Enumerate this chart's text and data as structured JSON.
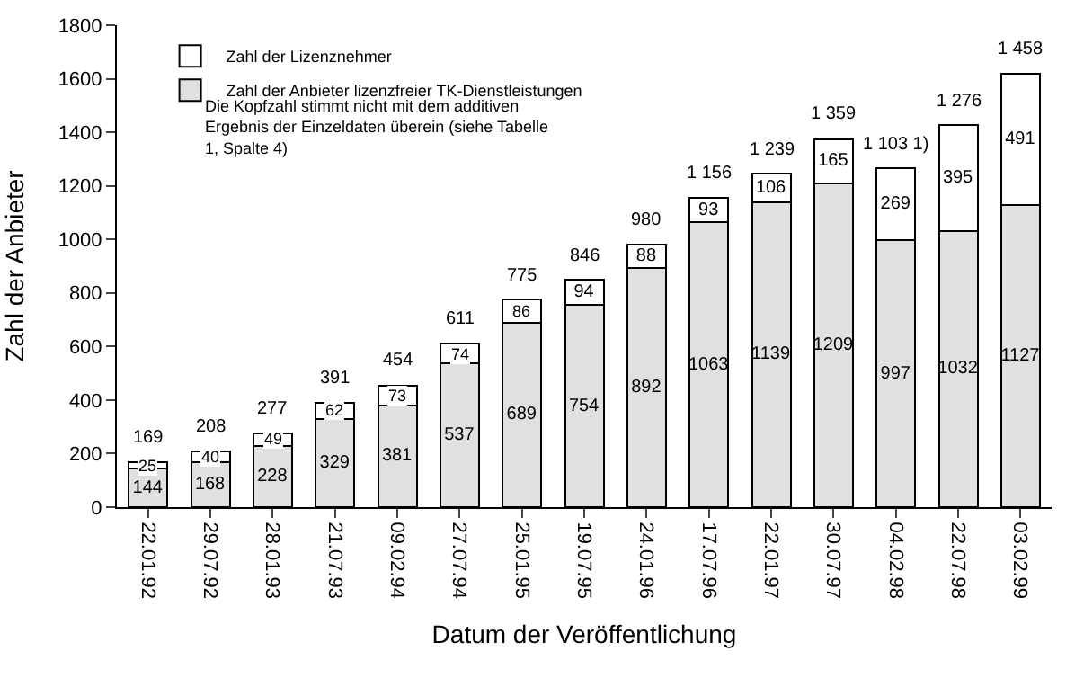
{
  "chart_data": {
    "type": "bar",
    "stacked": true,
    "xlabel": "Datum der Veröffentlichung",
    "ylabel": "Zahl der Anbieter",
    "categories": [
      "22.01.92",
      "29.07.92",
      "28.01.93",
      "21.07.93",
      "09.02.94",
      "27.07.94",
      "25.01.95",
      "19.07.95",
      "24.01.96",
      "17.07.96",
      "22.01.97",
      "30.07.97",
      "04.02.98",
      "22.07.98",
      "03.02.99"
    ],
    "series": [
      {
        "name": "Zahl der Anbieter lizenzfreier TK-Dienstleistungen",
        "color": "#e0e0e0",
        "values": [
          144,
          168,
          228,
          329,
          381,
          537,
          689,
          754,
          892,
          1063,
          1139,
          1209,
          997,
          1032,
          1127
        ]
      },
      {
        "name": "Zahl der Lizenznehmer",
        "color": "#ffffff",
        "values": [
          25,
          40,
          49,
          62,
          73,
          74,
          86,
          94,
          88,
          93,
          106,
          165,
          269,
          395,
          491
        ]
      }
    ],
    "data_labels": true,
    "annotations": [
      "Die Kopfzahl stimmt nicht mit dem additiven Ergebnis der Einzeldaten überein (siehe Tabelle 1, Spalte 4)",
      {
        "text": "169",
        "x": "22.01.92",
        "y": 169
      },
      {
        "text": "208",
        "x": "29.07.92",
        "y": 208
      },
      {
        "text": "277",
        "x": "28.01.93",
        "y": 277
      },
      {
        "text": "391",
        "x": "21.07.93",
        "y": 391
      },
      {
        "text": "454",
        "x": "09.02.94",
        "y": 454
      },
      {
        "text": "611",
        "x": "27.07.94",
        "y": 611
      },
      {
        "text": "775",
        "x": "25.01.95",
        "y": 775
      },
      {
        "text": "846",
        "x": "19.07.95",
        "y": 848
      },
      {
        "text": "980",
        "x": "24.01.96",
        "y": 980
      },
      {
        "text": "1 156",
        "x": "17.07.96",
        "y": 1156
      },
      {
        "text": "1 239",
        "x": "22.01.97",
        "y": 1245
      },
      {
        "text": "1 359",
        "x": "30.07.97",
        "y": 1374
      },
      {
        "text": "1 103 1)",
        "x": "04.02.98",
        "y": 1266
      },
      {
        "text": "1 276",
        "x": "22.07.98",
        "y": 1427
      },
      {
        "text": "1 458",
        "x": "03.02.99",
        "y": 1618
      }
    ],
    "ylim": [
      0,
      1800
    ],
    "yticks": [
      0,
      200,
      400,
      600,
      800,
      1000,
      1200,
      1400,
      1600,
      1800
    ],
    "legend": "top left"
  }
}
